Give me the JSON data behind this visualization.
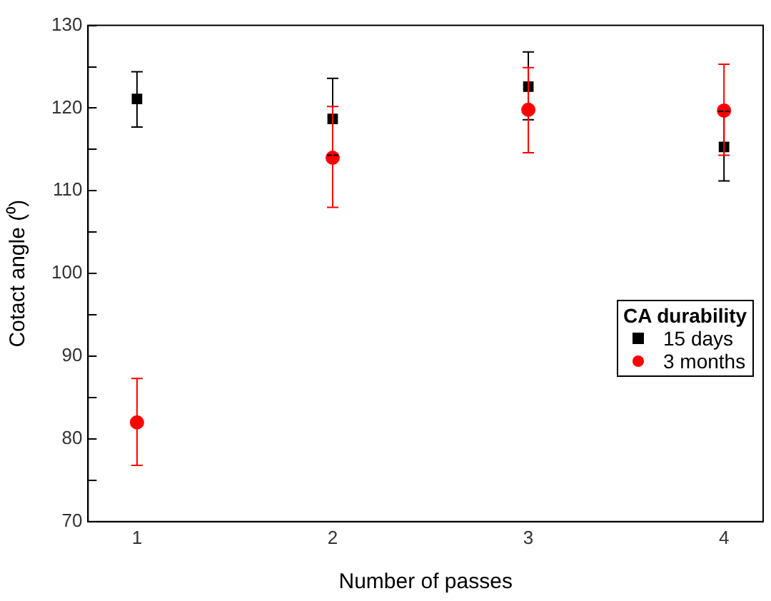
{
  "chart_data": {
    "type": "scatter",
    "xlabel": "Number of passes",
    "ylabel": "Cotact angle (⁰)",
    "legend_title": "CA durability",
    "legend": "right",
    "grid": false,
    "x": [
      1,
      2,
      3,
      4
    ],
    "series": [
      {
        "name": "15 days",
        "color": "#000000",
        "marker": "square",
        "values": [
          121.1,
          118.7,
          122.6,
          115.3
        ],
        "errors": [
          [
            117.7,
            124.4
          ],
          [
            114.3,
            123.6
          ],
          [
            118.6,
            126.8
          ],
          [
            111.2,
            119.6
          ]
        ]
      },
      {
        "name": "3 months",
        "color": "#ff0000",
        "marker": "circle",
        "values": [
          82.0,
          114.0,
          119.8,
          119.7
        ],
        "errors": [
          [
            76.8,
            87.3
          ],
          [
            108.0,
            120.2
          ],
          [
            114.6,
            124.9
          ],
          [
            114.3,
            125.3
          ]
        ]
      }
    ],
    "xlim": [
      0.75,
      4.2
    ],
    "xticks": [
      1,
      2,
      3,
      4
    ],
    "ylim": [
      70,
      130
    ],
    "yticks": [
      70,
      {
        "value": 75,
        "label": null
      },
      80,
      {
        "value": 85,
        "label": null
      },
      90,
      {
        "value": 95,
        "label": null
      },
      100,
      {
        "value": 105,
        "label": null
      },
      110,
      {
        "value": 115,
        "label": null
      },
      120,
      {
        "value": 125,
        "label": null
      },
      130
    ]
  }
}
